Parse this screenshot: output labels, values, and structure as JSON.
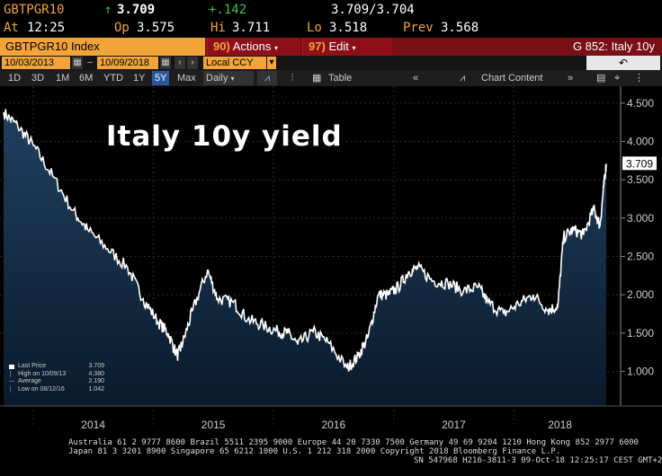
{
  "quote": {
    "ticker": "GBTPGR10",
    "arrow": "↑",
    "last": "3.709",
    "change": "+.142",
    "bid_ask": "3.709/3.704",
    "at_label": "At",
    "at_time": "12:25",
    "op_label": "Op",
    "op_val": "3.575",
    "hi_label": "Hi",
    "hi_val": "3.711",
    "lo_label": "Lo",
    "lo_val": "3.518",
    "prev_label": "Prev",
    "prev_val": "3.568"
  },
  "titlebar": {
    "index_label": "GBTPGR10 Index",
    "actions_num": "90",
    "actions_label": "Actions",
    "edit_num": "97",
    "edit_label": "Edit",
    "graph_title": "G 852: Italy 10y"
  },
  "daterow": {
    "start_date": "10/03/2013",
    "end_date": "10/09/2018",
    "currency": "Local CCY"
  },
  "toolbar": {
    "periods": [
      "1D",
      "3D",
      "1M",
      "6M",
      "YTD",
      "1Y",
      "5Y",
      "Max"
    ],
    "active_period": "5Y",
    "frequency": "Daily",
    "table_label": "Table",
    "chart_content_label": "Chart Content"
  },
  "chart_data": {
    "type": "area",
    "title": "Italy 10y yield",
    "current_value": "3.709",
    "yticks": [
      "4.500",
      "4.000",
      "3.500",
      "3.000",
      "2.500",
      "2.000",
      "1.500",
      "1.000"
    ],
    "ytick_values": [
      4.5,
      4.0,
      3.5,
      3.0,
      2.5,
      2.0,
      1.5,
      1.0
    ],
    "ylim": [
      0.55,
      4.72
    ],
    "xticks": [
      "2014",
      "2015",
      "2016",
      "2017",
      "2018"
    ],
    "xlim": [
      "2013-10-03",
      "2018-10-09"
    ],
    "x": [
      "2013-10-03",
      "2013-11-15",
      "2014-01-01",
      "2014-03-01",
      "2014-05-01",
      "2014-06-15",
      "2014-08-15",
      "2014-10-15",
      "2014-12-01",
      "2015-01-15",
      "2015-02-15",
      "2015-03-15",
      "2015-04-01",
      "2015-05-01",
      "2015-06-15",
      "2015-07-15",
      "2015-09-01",
      "2015-10-15",
      "2015-12-01",
      "2016-01-15",
      "2016-02-15",
      "2016-03-15",
      "2016-05-01",
      "2016-06-15",
      "2016-08-12",
      "2016-09-15",
      "2016-10-15",
      "2016-11-15",
      "2016-12-15",
      "2017-01-15",
      "2017-02-15",
      "2017-03-15",
      "2017-05-01",
      "2017-06-15",
      "2017-08-01",
      "2017-09-15",
      "2017-10-15",
      "2017-12-01",
      "2018-01-15",
      "2018-03-01",
      "2018-04-15",
      "2018-05-15",
      "2018-06-01",
      "2018-07-01",
      "2018-08-01",
      "2018-09-01",
      "2018-09-20",
      "2018-10-01",
      "2018-10-09"
    ],
    "values": [
      4.38,
      4.2,
      3.95,
      3.55,
      3.1,
      2.85,
      2.6,
      2.35,
      1.95,
      1.65,
      1.5,
      1.2,
      1.38,
      1.8,
      2.32,
      1.95,
      1.9,
      1.68,
      1.6,
      1.52,
      1.5,
      1.35,
      1.52,
      1.38,
      1.04,
      1.2,
      1.45,
      2.0,
      2.0,
      2.1,
      2.3,
      2.35,
      2.18,
      2.15,
      2.05,
      2.1,
      1.9,
      1.75,
      1.88,
      2.0,
      1.8,
      1.85,
      2.75,
      2.85,
      2.78,
      3.12,
      2.9,
      3.4,
      3.709
    ],
    "legend": {
      "last_price_label": "Last Price",
      "last_price_val": "3.709",
      "high_label": "High on 10/09/13",
      "high_val": "4.380",
      "average_label": "Average",
      "average_val": "2.190",
      "low_label": "Low on 08/12/16",
      "low_val": "1.042"
    },
    "line_color": "#ffffff",
    "fill_top_color": "#21405f",
    "fill_bottom_color": "#0a1a2c"
  },
  "footer": {
    "line1": "Australia 61 2 9777 8600 Brazil 5511 2395 9000 Europe 44 20 7330 7500 Germany 49 69 9204 1210 Hong Kong 852 2977 6000",
    "line2": "Japan 81 3 3201 8900       Singapore 65 6212 1000       U.S. 1 212 318 2000            Copyright 2018 Bloomberg Finance L.P.",
    "line3": "SN 547968 H216-3811-3 09-Oct-18 12:25:17 CEST GMT+2:00"
  }
}
